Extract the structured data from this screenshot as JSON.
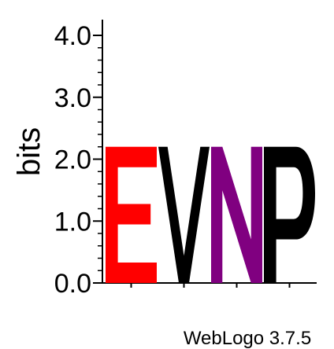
{
  "chart_data": {
    "type": "sequence-logo",
    "ylabel": "bits",
    "ylim": [
      0,
      4.0
    ],
    "yticks": [
      {
        "value": 0.0,
        "label": "0.0"
      },
      {
        "value": 1.0,
        "label": "1.0"
      },
      {
        "value": 2.0,
        "label": "2.0"
      },
      {
        "value": 3.0,
        "label": "3.0"
      },
      {
        "value": 4.0,
        "label": "4.0"
      }
    ],
    "positions": [
      {
        "letter": "E",
        "bits": 2.2,
        "color": "#ff0000"
      },
      {
        "letter": "V",
        "bits": 2.2,
        "color": "#000000"
      },
      {
        "letter": "N",
        "bits": 2.2,
        "color": "#800080"
      },
      {
        "letter": "P",
        "bits": 2.2,
        "color": "#000000"
      }
    ],
    "footer": "WebLogo 3.7.5"
  }
}
